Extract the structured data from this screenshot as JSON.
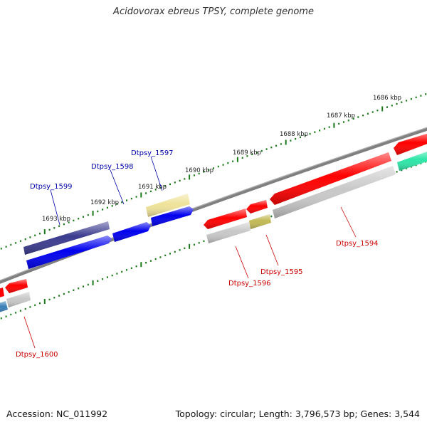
{
  "title": "Acidovorax ebreus TPSY, complete genome",
  "footer": {
    "accession": "Accession: NC_011992",
    "topology": "Topology: circular; Length: 3,796,573 bp; Genes: 3,544"
  },
  "ticks": [
    "1686 kbp",
    "1687 kbp",
    "1688 kbp",
    "1689 kbp",
    "1690 kbp",
    "1691 kbp",
    "1692 kbp",
    "1693 kbp"
  ],
  "gene_labels": [
    {
      "text": "Dtpsy_1599",
      "strand": "forward",
      "color": "#0000aa"
    },
    {
      "text": "Dtpsy_1598",
      "strand": "forward",
      "color": "#0000aa"
    },
    {
      "text": "Dtpsy_1597",
      "strand": "forward",
      "color": "#0000aa"
    },
    {
      "text": "Dtpsy_1594",
      "strand": "reverse",
      "color": "#cc0000"
    },
    {
      "text": "Dtpsy_1595",
      "strand": "reverse",
      "color": "#cc0000"
    },
    {
      "text": "Dtpsy_1596",
      "strand": "reverse",
      "color": "#cc0000"
    },
    {
      "text": "Dtpsy_1600",
      "strand": "reverse",
      "color": "#cc0000"
    }
  ],
  "colors": {
    "backbone": "#808080",
    "ticks": "#1a7a1a",
    "forward_label": "#0000aa",
    "reverse_label": "#cc0000",
    "gene_red": "#ff0000",
    "gene_blue": "#0000ee",
    "gene_navy": "#3b3b8f",
    "gene_yellow": "#efe39a",
    "gene_olive": "#c2b955",
    "gene_gray": "#c8c8c8",
    "gene_teal": "#2ee6a8",
    "gene_steel": "#3a7fb8"
  }
}
